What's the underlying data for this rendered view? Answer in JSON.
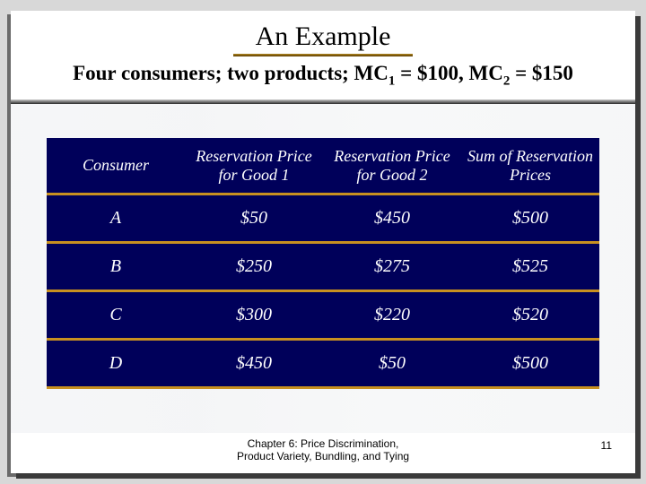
{
  "title": "An Example",
  "subtitle_parts": {
    "pre": "Four consumers; two products; MC",
    "sub1": "1",
    "mid1": " = $100, MC",
    "sub2": "2",
    "mid2": " = $150"
  },
  "table": {
    "columns": [
      "Consumer",
      "Reservation Price for Good 1",
      "Reservation Price for Good 2",
      "Sum of Reservation Prices"
    ],
    "rows": [
      [
        "A",
        "$50",
        "$450",
        "$500"
      ],
      [
        "B",
        "$250",
        "$275",
        "$525"
      ],
      [
        "C",
        "$300",
        "$220",
        "$520"
      ],
      [
        "D",
        "$450",
        "$50",
        "$500"
      ]
    ],
    "header_bg": "#00005a",
    "cell_bg": "#00005a",
    "text_color": "#ffffff",
    "rule_color": "#c89020",
    "font_style": "italic"
  },
  "footer": {
    "text": "Chapter 6: Price Discrimination,\nProduct Variety, Bundling, and Tying",
    "page": "11"
  },
  "colors": {
    "slide_bg": "#ffffff",
    "page_bg": "#d8d8d8",
    "title_underline": "#b08820"
  }
}
